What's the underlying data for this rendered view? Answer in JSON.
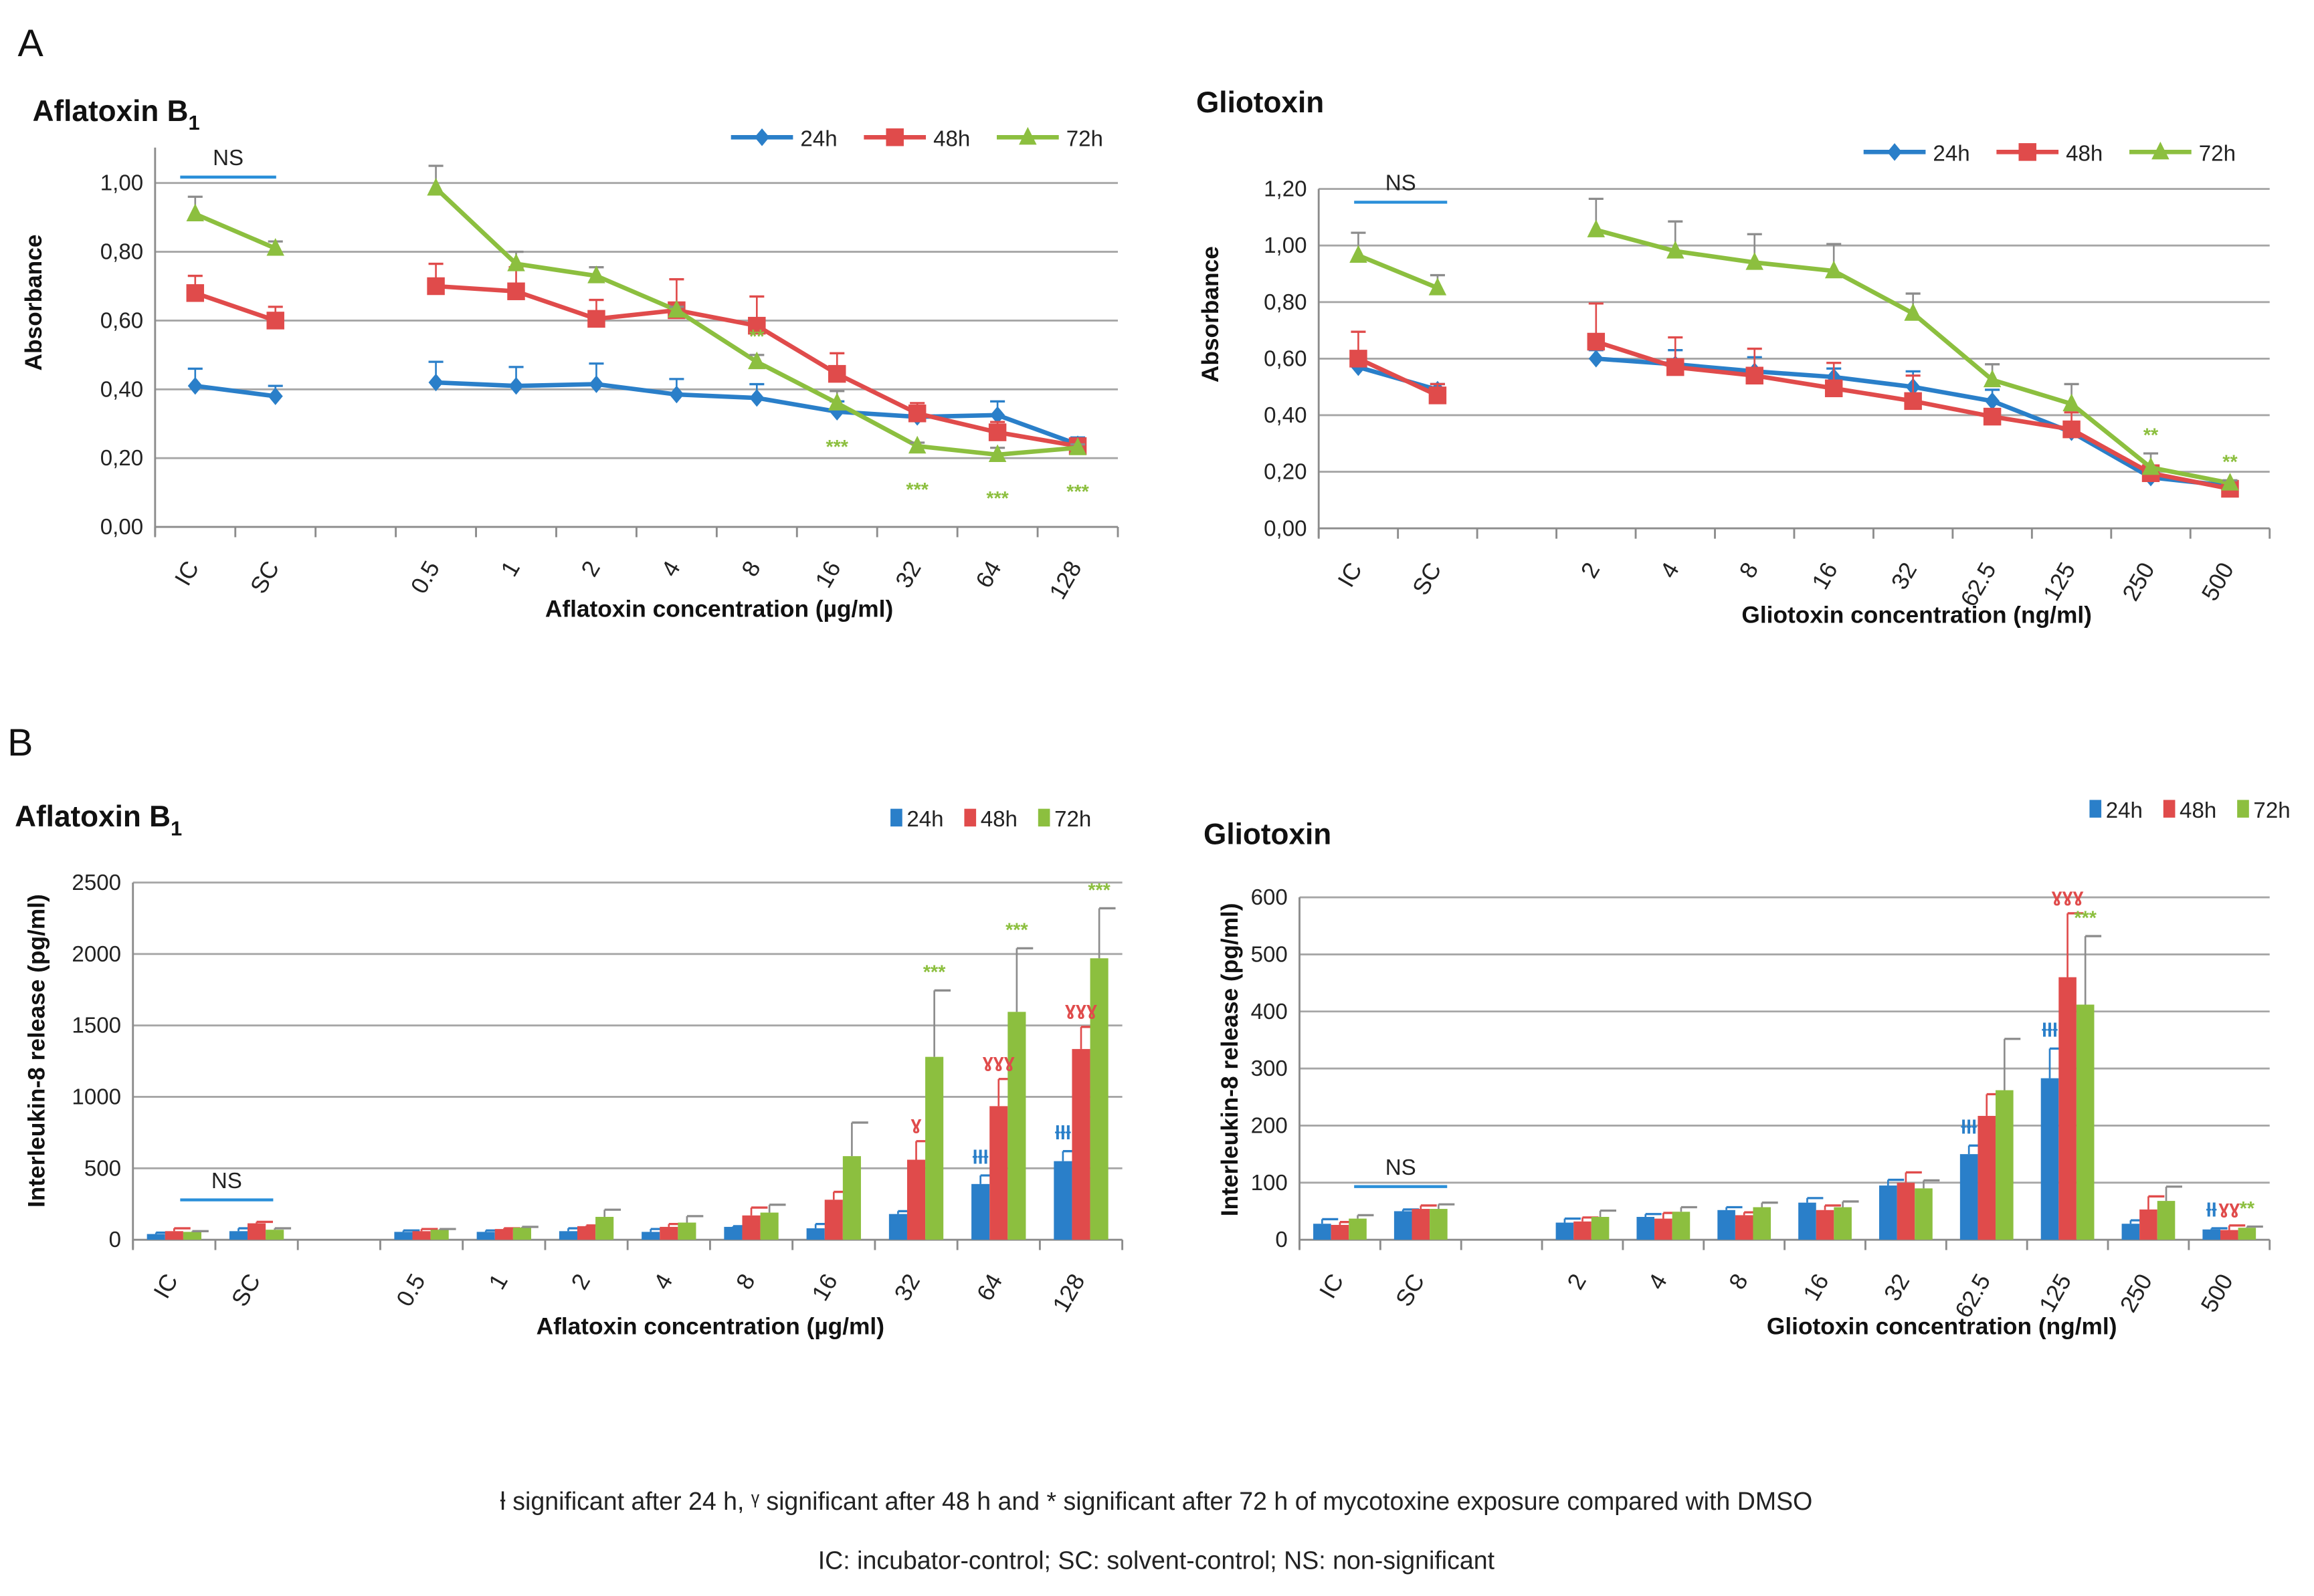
{
  "panels": {
    "a": "A",
    "b": "B"
  },
  "colors": {
    "24h": "#2a7fc9",
    "48h": "#e04b4b",
    "72h": "#8cbf3f",
    "ns_line": "#2a8fd9",
    "error": "#8c8c8c"
  },
  "footnotes": {
    "line1": "ƚ significant after 24 h,  ᵞ significant after 48 h and  * significant after 72 h of mycotoxine exposure compared with DMSO",
    "line2": "IC: incubator-control; SC: solvent-control; NS: non-significant"
  },
  "chart_data": [
    {
      "id": "a1",
      "type": "line",
      "title": "Aflatoxin B",
      "title_sub": "1",
      "xlabel": "Aflatoxin concentration (µg/ml)",
      "ylabel": "Absorbance",
      "ylim": [
        0,
        1.1
      ],
      "yticks": [
        "0,00",
        "0,20",
        "0,40",
        "0,60",
        "0,80",
        "1,00"
      ],
      "ytick_values": [
        0,
        0.2,
        0.4,
        0.6,
        0.8,
        1.0
      ],
      "categories": [
        "IC",
        "SC",
        "0.5",
        "1",
        "2",
        "4",
        "8",
        "16",
        "32",
        "64",
        "128"
      ],
      "ns_label": "NS",
      "legend": [
        "24h",
        "48h",
        "72h"
      ],
      "legend_placement": "top-right",
      "series": [
        {
          "name": "24h",
          "values": [
            0.41,
            0.38,
            0.42,
            0.41,
            0.415,
            0.385,
            0.375,
            0.335,
            0.32,
            0.325,
            0.24
          ],
          "errors": [
            0.05,
            0.03,
            0.06,
            0.055,
            0.06,
            0.045,
            0.04,
            0.03,
            0.03,
            0.04,
            0.02
          ]
        },
        {
          "name": "48h",
          "values": [
            0.68,
            0.6,
            0.7,
            0.685,
            0.605,
            0.63,
            0.585,
            0.445,
            0.33,
            0.275,
            0.235
          ],
          "errors": [
            0.05,
            0.04,
            0.065,
            0.07,
            0.055,
            0.09,
            0.085,
            0.06,
            0.03,
            0.03,
            0.02
          ]
        },
        {
          "name": "72h",
          "values": [
            0.91,
            0.81,
            0.985,
            0.765,
            0.73,
            0.63,
            0.48,
            0.36,
            0.235,
            0.21,
            0.23
          ],
          "errors": [
            0.05,
            0.02,
            0.065,
            0.035,
            0.025,
            0.01,
            0.02,
            0.035,
            0.01,
            0.02,
            0.01
          ]
        }
      ],
      "annotations": [
        {
          "category": "8",
          "series": "72h",
          "text": "**",
          "position": "above"
        },
        {
          "category": "16",
          "series": "72h",
          "text": "***",
          "position": "below"
        },
        {
          "category": "32",
          "series": "72h",
          "text": "***",
          "position": "below"
        },
        {
          "category": "64",
          "series": "72h",
          "text": "***",
          "position": "below"
        },
        {
          "category": "128",
          "series": "72h",
          "text": "***",
          "position": "below"
        }
      ]
    },
    {
      "id": "a2",
      "type": "line",
      "title": "Gliotoxin",
      "title_sub": "",
      "xlabel": "Gliotoxin concentration (ng/ml)",
      "ylabel": "Absorbance",
      "ylim": [
        0,
        1.2
      ],
      "yticks": [
        "0,00",
        "0,20",
        "0,40",
        "0,60",
        "0,80",
        "1,00",
        "1,20"
      ],
      "ytick_values": [
        0,
        0.2,
        0.4,
        0.6,
        0.8,
        1.0,
        1.2
      ],
      "categories": [
        "IC",
        "SC",
        "2",
        "4",
        "8",
        "16",
        "32",
        "62.5",
        "125",
        "250",
        "500"
      ],
      "ns_label": "NS",
      "legend": [
        "24h",
        "48h",
        "72h"
      ],
      "legend_placement": "top-right",
      "series": [
        {
          "name": "24h",
          "values": [
            0.57,
            0.49,
            0.6,
            0.58,
            0.555,
            0.535,
            0.5,
            0.45,
            0.34,
            0.18,
            0.15
          ],
          "errors": [
            0.05,
            0.02,
            0.03,
            0.05,
            0.05,
            0.03,
            0.055,
            0.04,
            0.03,
            0.02,
            0.01
          ]
        },
        {
          "name": "48h",
          "values": [
            0.6,
            0.47,
            0.66,
            0.57,
            0.54,
            0.495,
            0.45,
            0.395,
            0.35,
            0.195,
            0.14
          ],
          "errors": [
            0.095,
            0.04,
            0.135,
            0.105,
            0.095,
            0.09,
            0.09,
            0.02,
            0.06,
            0.02,
            0.01
          ]
        },
        {
          "name": "72h",
          "values": [
            0.965,
            0.85,
            1.055,
            0.98,
            0.94,
            0.91,
            0.76,
            0.525,
            0.44,
            0.215,
            0.16
          ],
          "errors": [
            0.08,
            0.045,
            0.11,
            0.105,
            0.1,
            0.095,
            0.07,
            0.055,
            0.07,
            0.05,
            0.01
          ]
        }
      ],
      "annotations": [
        {
          "category": "250",
          "series": "72h",
          "text": "**",
          "position": "above"
        },
        {
          "category": "500",
          "series": "72h",
          "text": "**",
          "position": "above"
        }
      ]
    },
    {
      "id": "b1",
      "type": "bar",
      "title": "Aflatoxin B",
      "title_sub": "1",
      "xlabel": "Aflatoxin concentration (µg/ml)",
      "ylabel": "Interleukin-8 release (pg/ml)",
      "ylim": [
        0,
        2500
      ],
      "yticks": [
        "0",
        "500",
        "1000",
        "1500",
        "2000",
        "2500"
      ],
      "ytick_values": [
        0,
        500,
        1000,
        1500,
        2000,
        2500
      ],
      "categories": [
        "IC",
        "SC",
        "0.5",
        "1",
        "2",
        "4",
        "8",
        "16",
        "32",
        "64",
        "128"
      ],
      "ns_label": "NS",
      "legend": [
        "24h",
        "48h",
        "72h"
      ],
      "legend_placement": "top-right",
      "series": [
        {
          "name": "24h",
          "values": [
            40,
            60,
            55,
            55,
            60,
            55,
            90,
            80,
            180,
            390,
            550
          ],
          "errors": [
            10,
            20,
            10,
            10,
            20,
            20,
            5,
            30,
            20,
            60,
            70
          ]
        },
        {
          "name": "48h",
          "values": [
            60,
            115,
            60,
            75,
            95,
            90,
            170,
            280,
            560,
            935,
            1335
          ],
          "errors": [
            20,
            10,
            15,
            5,
            5,
            20,
            55,
            55,
            130,
            190,
            155
          ]
        },
        {
          "name": "72h",
          "values": [
            55,
            70,
            70,
            85,
            160,
            120,
            190,
            585,
            1280,
            1595,
            1970
          ],
          "errors": [
            5,
            10,
            5,
            5,
            50,
            45,
            55,
            235,
            465,
            445,
            350
          ]
        }
      ],
      "annotations": [
        {
          "category": "32",
          "series": "48h",
          "text": "ɣ",
          "position": "above"
        },
        {
          "category": "32",
          "series": "72h",
          "text": "***",
          "position": "above"
        },
        {
          "category": "64",
          "series": "24h",
          "text": "ƚƚƚ",
          "position": "above"
        },
        {
          "category": "64",
          "series": "48h",
          "text": "ɣɣɣ",
          "position": "above"
        },
        {
          "category": "64",
          "series": "72h",
          "text": "***",
          "position": "above"
        },
        {
          "category": "128",
          "series": "24h",
          "text": "ƚƚƚ",
          "position": "above"
        },
        {
          "category": "128",
          "series": "48h",
          "text": "ɣɣɣ",
          "position": "above"
        },
        {
          "category": "128",
          "series": "72h",
          "text": "***",
          "position": "above"
        }
      ]
    },
    {
      "id": "b2",
      "type": "bar",
      "title": "Gliotoxin",
      "title_sub": "",
      "xlabel": "Gliotoxin concentration (ng/ml)",
      "ylabel": "Interleukin-8 release (pg/ml)",
      "ylim": [
        0,
        600
      ],
      "yticks": [
        "0",
        "100",
        "200",
        "300",
        "400",
        "500",
        "600"
      ],
      "ytick_values": [
        0,
        100,
        200,
        300,
        400,
        500,
        600
      ],
      "categories": [
        "IC",
        "SC",
        "2",
        "4",
        "8",
        "16",
        "32",
        "62.5",
        "125",
        "250",
        "500"
      ],
      "ns_label": "NS",
      "legend": [
        "24h",
        "48h",
        "72h"
      ],
      "legend_placement": "top-right",
      "series": [
        {
          "name": "24h",
          "values": [
            28,
            50,
            30,
            40,
            52,
            65,
            95,
            150,
            283,
            28,
            18
          ],
          "errors": [
            8,
            3,
            7,
            5,
            5,
            8,
            10,
            15,
            52,
            6,
            2
          ]
        },
        {
          "name": "48h",
          "values": [
            26,
            54,
            32,
            37,
            43,
            52,
            100,
            217,
            460,
            53,
            17
          ],
          "errors": [
            5,
            6,
            7,
            10,
            5,
            8,
            18,
            38,
            112,
            23,
            8
          ]
        },
        {
          "name": "72h",
          "values": [
            37,
            54,
            40,
            49,
            57,
            57,
            90,
            262,
            412,
            68,
            21
          ],
          "errors": [
            6,
            8,
            11,
            8,
            8,
            10,
            14,
            90,
            120,
            25,
            2
          ]
        }
      ],
      "annotations": [
        {
          "category": "62.5",
          "series": "24h",
          "text": "ƚƚƚ",
          "position": "above"
        },
        {
          "category": "125",
          "series": "24h",
          "text": "ƚƚƚ",
          "position": "above"
        },
        {
          "category": "125",
          "series": "48h",
          "text": "ɣɣɣ",
          "position": "above"
        },
        {
          "category": "125",
          "series": "72h",
          "text": "***",
          "position": "above"
        },
        {
          "category": "500",
          "series": "24h",
          "text": "ƚƚ",
          "position": "above"
        },
        {
          "category": "500",
          "series": "48h",
          "text": "ɣɣ",
          "position": "above"
        },
        {
          "category": "500",
          "series": "72h",
          "text": "**",
          "position": "above"
        }
      ]
    }
  ]
}
